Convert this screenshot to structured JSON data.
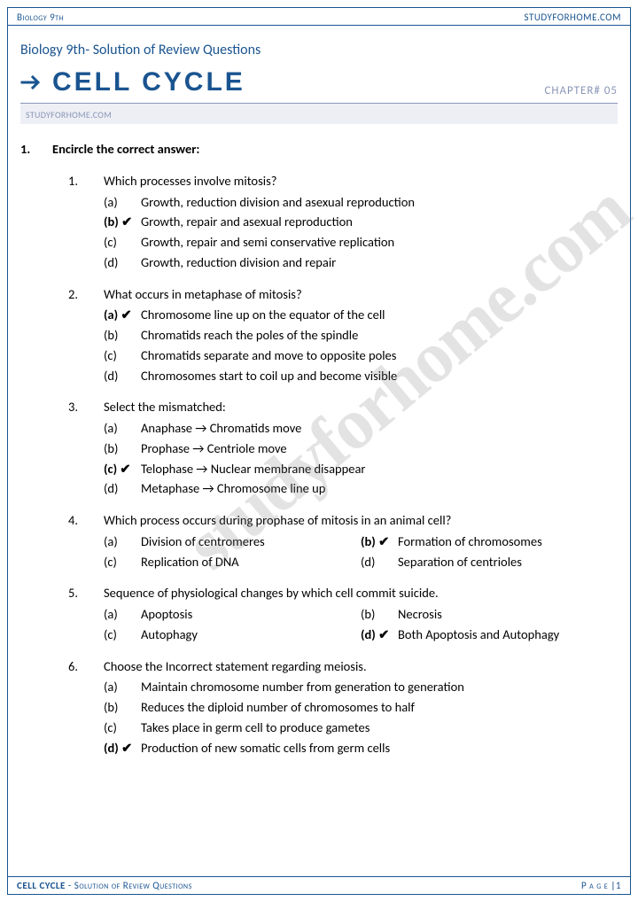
{
  "header": {
    "left": "Biology 9th",
    "right": "STUDYFORHOME.COM"
  },
  "subtitle": "Biology 9th- Solution of Review Questions",
  "title": "CELL CYCLE",
  "chapter": "CHAPTER# 05",
  "watermark_small": "STUDYFORHOME.COM",
  "watermark_big": "studyforhome.com",
  "main_question": {
    "num": "1.",
    "text": "Encircle the correct answer:"
  },
  "questions": [
    {
      "num": "1.",
      "text": "Which processes involve mitosis?",
      "layout": "1col",
      "opts": [
        {
          "lbl": "(a)",
          "txt": "Growth, reduction division and asexual reproduction",
          "chk": false
        },
        {
          "lbl": "(b) ✔",
          "txt": "Growth, repair and asexual reproduction",
          "chk": true
        },
        {
          "lbl": "(c)",
          "txt": "Growth, repair and semi conservative replication",
          "chk": false
        },
        {
          "lbl": "(d)",
          "txt": "Growth, reduction division and repair",
          "chk": false
        }
      ]
    },
    {
      "num": "2.",
      "text": "What occurs in metaphase of mitosis?",
      "layout": "1col",
      "opts": [
        {
          "lbl": "(a) ✔",
          "txt": "Chromosome line up on the equator of the cell",
          "chk": true
        },
        {
          "lbl": "(b)",
          "txt": "Chromatids reach the poles of the spindle",
          "chk": false
        },
        {
          "lbl": "(c)",
          "txt": "Chromatids separate and move to opposite poles",
          "chk": false
        },
        {
          "lbl": "(d)",
          "txt": "Chromosomes start to coil up and become visible",
          "chk": false
        }
      ]
    },
    {
      "num": "3.",
      "text": "Select the mismatched:",
      "layout": "1col",
      "opts": [
        {
          "lbl": "(a)",
          "txt": "Anaphase → Chromatids move",
          "chk": false
        },
        {
          "lbl": "(b)",
          "txt": "Prophase → Centriole move",
          "chk": false
        },
        {
          "lbl": "(c) ✔",
          "txt": "Telophase → Nuclear membrane disappear",
          "chk": true
        },
        {
          "lbl": "(d)",
          "txt": "Metaphase → Chromosome line up",
          "chk": false
        }
      ]
    },
    {
      "num": "4.",
      "text": "Which process occurs during prophase of mitosis in an animal cell?",
      "layout": "2col",
      "opts": [
        {
          "lbl": "(a)",
          "txt": "Division of centromeres",
          "chk": false
        },
        {
          "lbl": "(b) ✔",
          "txt": "Formation of chromosomes",
          "chk": true
        },
        {
          "lbl": "(c)",
          "txt": "Replication of DNA",
          "chk": false
        },
        {
          "lbl": "(d)",
          "txt": "Separation of centrioles",
          "chk": false
        }
      ]
    },
    {
      "num": "5.",
      "text": "Sequence of physiological changes by which cell commit suicide.",
      "layout": "2col",
      "opts": [
        {
          "lbl": "(a)",
          "txt": "Apoptosis",
          "chk": false
        },
        {
          "lbl": "(b)",
          "txt": "Necrosis",
          "chk": false
        },
        {
          "lbl": "(c)",
          "txt": "Autophagy",
          "chk": false
        },
        {
          "lbl": "(d) ✔",
          "txt": "Both Apoptosis and Autophagy",
          "chk": true
        }
      ]
    },
    {
      "num": "6.",
      "text": "Choose the Incorrect statement regarding meiosis.",
      "layout": "1col",
      "opts": [
        {
          "lbl": "(a)",
          "txt": "Maintain chromosome number from generation to generation",
          "chk": false
        },
        {
          "lbl": "(b)",
          "txt": "Reduces the diploid number of chromosomes to half",
          "chk": false
        },
        {
          "lbl": "(c)",
          "txt": "Takes place in germ cell to produce gametes",
          "chk": false
        },
        {
          "lbl": "(d) ✔",
          "txt": "Production of new somatic cells from germ cells",
          "chk": true
        }
      ]
    }
  ],
  "footer": {
    "left_bold": "CELL CYCLE",
    "left_rest": " - Solution of Review Questions",
    "right_pre": "P a g e ",
    "right_bar": "|",
    "right_num": "1"
  },
  "colors": {
    "primary": "#1a5490",
    "muted": "#8a96b8",
    "wm": "rgba(128,128,128,0.22)"
  }
}
